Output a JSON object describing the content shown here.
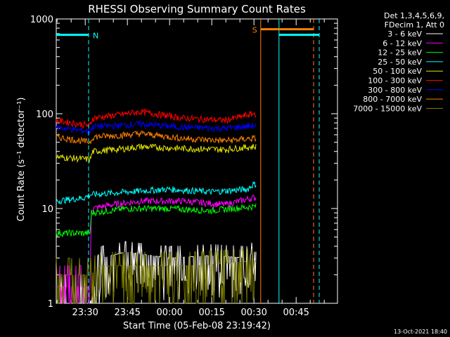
{
  "chart_data": {
    "type": "line",
    "title": "RHESSI Observing Summary Count Rates",
    "xlabel": "Start Time (05-Feb-08 23:19:42)",
    "ylabel": "Count Rate (s⁻¹ detector⁻¹)",
    "yscale": "log",
    "ylim": [
      1,
      1000
    ],
    "xlim_minutes": [
      0,
      100
    ],
    "x_ticks": [
      {
        "label": "23:30",
        "min": 10.3
      },
      {
        "label": "23:45",
        "min": 25.3
      },
      {
        "label": "00:00",
        "min": 40.3
      },
      {
        "label": "00:15",
        "min": 55.3
      },
      {
        "label": "00:30",
        "min": 70.3
      },
      {
        "label": "00:45",
        "min": 85.3
      }
    ],
    "y_ticks": [
      {
        "label": "1",
        "value": 1
      },
      {
        "label": "10",
        "value": 10
      },
      {
        "label": "100",
        "value": 100
      },
      {
        "label": "1000",
        "value": 1000
      }
    ],
    "legend_header": [
      "Det 1,3,4,5,6,9,",
      "FDecim 1, Att 0"
    ],
    "legend_position": "outside-right",
    "series": [
      {
        "name": "3 - 6 keV",
        "color": "#ffffff",
        "points": [
          [
            0,
            1
          ],
          [
            12,
            1
          ],
          [
            16,
            3
          ],
          [
            25,
            3.5
          ],
          [
            40,
            3
          ],
          [
            55,
            3.2
          ],
          [
            68,
            3
          ],
          [
            70,
            3.5
          ]
        ]
      },
      {
        "name": "6 - 12 keV",
        "color": "#ff00ff",
        "points": [
          [
            0,
            1.5
          ],
          [
            12,
            1.5
          ],
          [
            12.5,
            10
          ],
          [
            20,
            11
          ],
          [
            30,
            12
          ],
          [
            45,
            12
          ],
          [
            60,
            11
          ],
          [
            70,
            13
          ]
        ]
      },
      {
        "name": "12 - 25 keV",
        "color": "#00ff00",
        "points": [
          [
            0,
            5.5
          ],
          [
            12,
            5.5
          ],
          [
            12.5,
            9
          ],
          [
            25,
            10
          ],
          [
            40,
            10
          ],
          [
            55,
            9.5
          ],
          [
            70,
            10.5
          ]
        ]
      },
      {
        "name": "25 - 50 keV",
        "color": "#00ffff",
        "points": [
          [
            0,
            12
          ],
          [
            10,
            13
          ],
          [
            12,
            14
          ],
          [
            25,
            15
          ],
          [
            40,
            16
          ],
          [
            55,
            15
          ],
          [
            68,
            16
          ],
          [
            70,
            18
          ]
        ]
      },
      {
        "name": "50 - 100 keV",
        "color": "#e6e600",
        "points": [
          [
            0,
            35
          ],
          [
            12,
            33
          ],
          [
            13,
            40
          ],
          [
            25,
            43
          ],
          [
            30,
            45
          ],
          [
            45,
            43
          ],
          [
            60,
            42
          ],
          [
            70,
            45
          ]
        ]
      },
      {
        "name": "100 - 300 keV",
        "color": "#ff0000",
        "points": [
          [
            0,
            85
          ],
          [
            12,
            75
          ],
          [
            13,
            90
          ],
          [
            25,
            100
          ],
          [
            30,
            105
          ],
          [
            45,
            90
          ],
          [
            60,
            85
          ],
          [
            70,
            100
          ]
        ]
      },
      {
        "name": "300 - 800 keV",
        "color": "#0000ff",
        "points": [
          [
            0,
            72
          ],
          [
            12,
            65
          ],
          [
            13,
            73
          ],
          [
            25,
            76
          ],
          [
            30,
            78
          ],
          [
            45,
            72
          ],
          [
            60,
            70
          ],
          [
            70,
            75
          ]
        ]
      },
      {
        "name": "800 - 7000 keV",
        "color": "#ff8000",
        "points": [
          [
            0,
            57
          ],
          [
            12,
            50
          ],
          [
            13,
            57
          ],
          [
            25,
            60
          ],
          [
            30,
            62
          ],
          [
            45,
            55
          ],
          [
            60,
            52
          ],
          [
            70,
            55
          ]
        ]
      },
      {
        "name": "7000 - 15000 keV",
        "color": "#808000",
        "points": [
          [
            0,
            2
          ],
          [
            12,
            2
          ],
          [
            16,
            2.5
          ],
          [
            30,
            2.5
          ],
          [
            50,
            2.5
          ],
          [
            70,
            2.8
          ]
        ]
      }
    ],
    "annotations": [
      {
        "text": "N",
        "color": "#00ffff",
        "x_min": 0,
        "x_end_min": 11.5,
        "level": 680
      },
      {
        "text": "S",
        "color": "#ff8000",
        "x_min": 72.7,
        "x_end_min": 91.5,
        "level": 780
      },
      {
        "text": "",
        "color": "#00ffff",
        "x_min": 79.2,
        "x_end_min": 93.5,
        "level": 680
      }
    ],
    "vertical_lines": [
      {
        "min": 11.5,
        "color": "#00ffff",
        "style": "dashed"
      },
      {
        "min": 72.7,
        "color": "#ff8000",
        "style": "solid"
      },
      {
        "min": 79.2,
        "color": "#00ffff",
        "style": "solid"
      },
      {
        "min": 91.5,
        "color": "#ff8000",
        "style": "dashed"
      },
      {
        "min": 93.5,
        "color": "#00ffff",
        "style": "dashed"
      }
    ],
    "footer": "13-Oct-2021 18:40"
  }
}
